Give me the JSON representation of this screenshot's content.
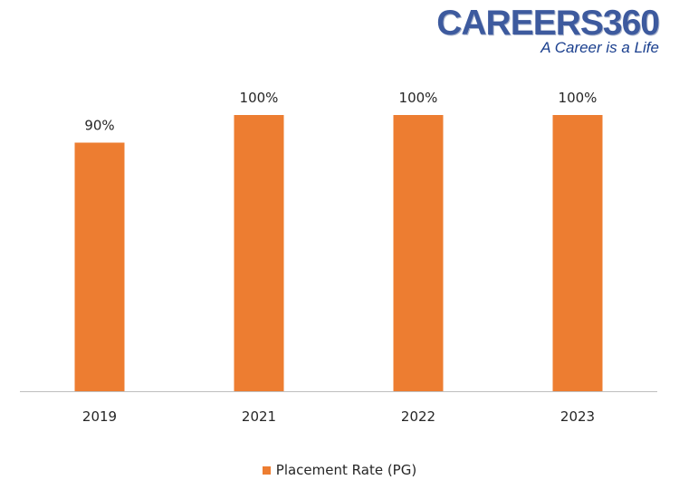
{
  "logo": {
    "main": "CAREERS360",
    "tagline": "A Career is a Life"
  },
  "colors": {
    "bar": "#ed7d31",
    "axis": "#bfbfbf",
    "text": "#262626"
  },
  "chart_data": {
    "type": "bar",
    "categories": [
      "2019",
      "2021",
      "2022",
      "2023"
    ],
    "series": [
      {
        "name": "Placement Rate (PG)",
        "values": [
          90,
          100,
          100,
          100
        ]
      }
    ],
    "data_labels": [
      "90%",
      "100%",
      "100%",
      "100%"
    ],
    "ylim": [
      0,
      100
    ],
    "grid": false,
    "legend": "bottom"
  }
}
